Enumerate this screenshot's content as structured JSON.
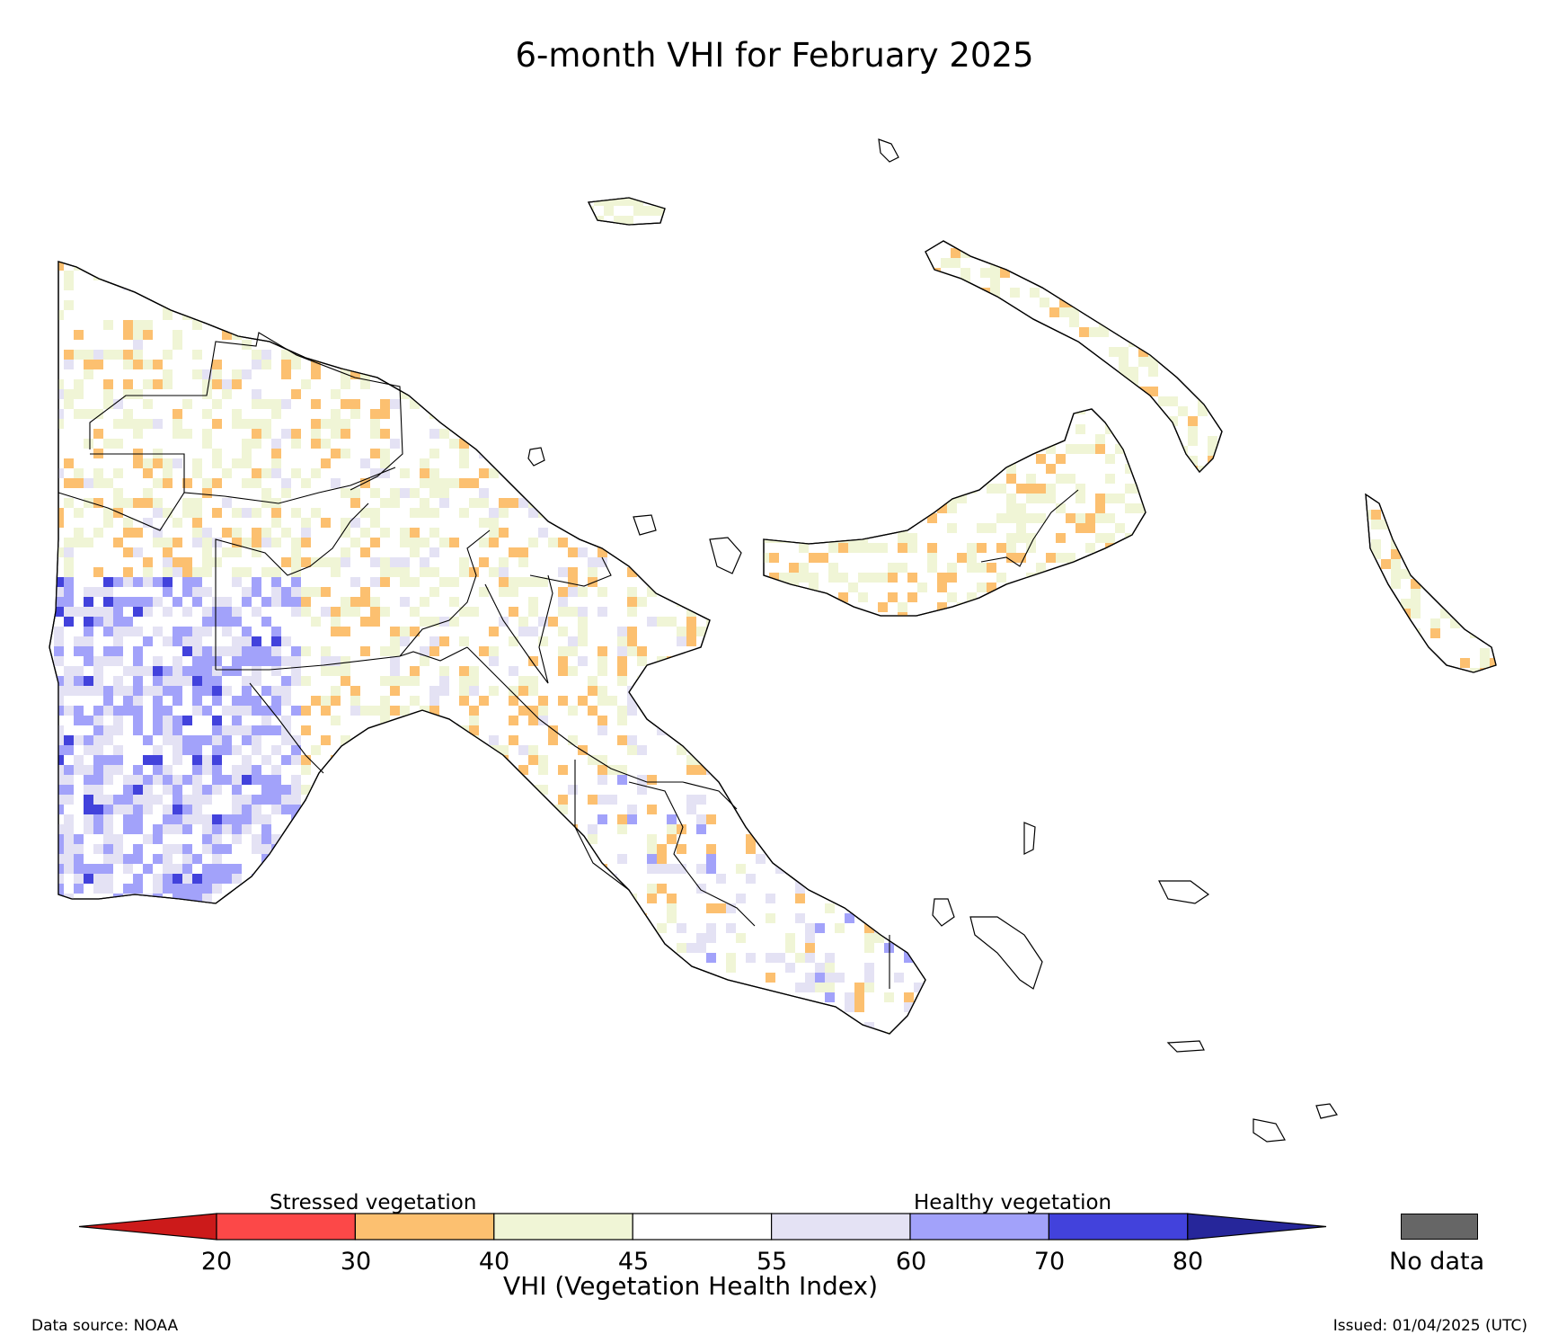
{
  "title": "6-month VHI for February 2025",
  "legend": {
    "stressed_label": "Stressed vegetation",
    "healthy_label": "Healthy vegetation",
    "axis_label": "VHI (Vegetation Health Index)",
    "ticks": [
      "20",
      "30",
      "40",
      "45",
      "55",
      "60",
      "70",
      "80"
    ],
    "classes": [
      {
        "range": "<20",
        "color": "#cc1a1a"
      },
      {
        "range": "20-30",
        "color": "#fc4848"
      },
      {
        "range": "30-40",
        "color": "#fcc070"
      },
      {
        "range": "40-45",
        "color": "#f0f5d6"
      },
      {
        "range": "45-55",
        "color": "#ffffff"
      },
      {
        "range": "55-60",
        "color": "#e4e2f4"
      },
      {
        "range": "60-70",
        "color": "#a2a2fa"
      },
      {
        "range": "70-80",
        "color": "#4242dc"
      },
      {
        "range": ">80",
        "color": "#26269a"
      }
    ],
    "no_data_label": "No data",
    "no_data_color": "#666666"
  },
  "footer": {
    "source": "Data source: NOAA",
    "issued": "Issued: 01/04/2025 (UTC)"
  }
}
